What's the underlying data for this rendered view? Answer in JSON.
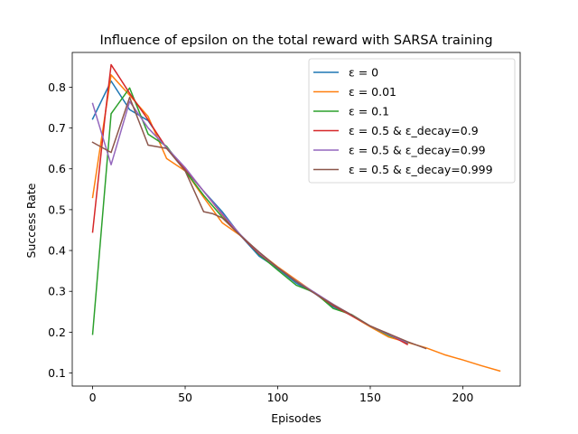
{
  "chart_data": {
    "type": "line",
    "title": "Influence of epsilon on the total reward with SARSA training",
    "xlabel": "Episodes",
    "ylabel": "Success Rate",
    "xlim": [
      -11,
      231
    ],
    "ylim": [
      0.068,
      0.885
    ],
    "xticks": [
      0,
      50,
      100,
      150,
      200
    ],
    "yticks": [
      0.1,
      0.2,
      0.3,
      0.4,
      0.5,
      0.6,
      0.7,
      0.8
    ],
    "xtick_labels": [
      "0",
      "50",
      "100",
      "150",
      "200"
    ],
    "ytick_labels": [
      "0.1",
      "0.2",
      "0.3",
      "0.4",
      "0.5",
      "0.6",
      "0.7",
      "0.8"
    ],
    "grid": false,
    "legend_position": "top-right",
    "series": [
      {
        "name": "ε = 0",
        "color": "#1f77b4",
        "x": [
          0,
          10,
          20,
          30,
          40,
          50,
          60,
          70,
          80,
          90,
          100,
          110,
          120,
          130,
          140,
          150,
          160,
          170
        ],
        "y": [
          0.722,
          0.815,
          0.745,
          0.718,
          0.65,
          0.598,
          0.545,
          0.495,
          0.436,
          0.386,
          0.356,
          0.32,
          0.295,
          0.262,
          0.241,
          0.214,
          0.196,
          0.172
        ]
      },
      {
        "name": "ε = 0.01",
        "color": "#ff7f0e",
        "x": [
          0,
          10,
          20,
          30,
          40,
          50,
          60,
          70,
          80,
          90,
          100,
          110,
          120,
          130,
          140,
          150,
          160,
          170,
          180,
          190,
          200,
          210,
          220
        ],
        "y": [
          0.53,
          0.83,
          0.78,
          0.728,
          0.625,
          0.595,
          0.53,
          0.468,
          0.436,
          0.395,
          0.36,
          0.328,
          0.296,
          0.268,
          0.24,
          0.213,
          0.188,
          0.175,
          0.162,
          0.145,
          0.132,
          0.118,
          0.105
        ]
      },
      {
        "name": "ε = 0.1",
        "color": "#2ca02c",
        "x": [
          0,
          10,
          20,
          30,
          40,
          50,
          60,
          70,
          80,
          90,
          100,
          110,
          120,
          130,
          140,
          150,
          160,
          170
        ],
        "y": [
          0.195,
          0.735,
          0.798,
          0.685,
          0.655,
          0.595,
          0.535,
          0.482,
          0.438,
          0.39,
          0.352,
          0.315,
          0.297,
          0.258,
          0.243,
          0.215,
          0.192,
          0.175
        ]
      },
      {
        "name": "ε = 0.5 & ε_decay=0.9",
        "color": "#d62728",
        "x": [
          0,
          7,
          10,
          20,
          30,
          40,
          50,
          60,
          70,
          80,
          90,
          100,
          110,
          120,
          130,
          140,
          150,
          160,
          170
        ],
        "y": [
          0.445,
          0.74,
          0.855,
          0.785,
          0.72,
          0.65,
          0.6,
          0.545,
          0.488,
          0.436,
          0.392,
          0.358,
          0.325,
          0.295,
          0.265,
          0.24,
          0.215,
          0.195,
          0.17
        ]
      },
      {
        "name": "ε = 0.5 & ε_decay=0.99",
        "color": "#9467bd",
        "x": [
          0,
          10,
          20,
          30,
          40,
          50,
          60,
          70,
          80,
          90,
          100,
          110,
          120,
          130,
          140,
          150,
          160,
          170
        ],
        "y": [
          0.76,
          0.61,
          0.765,
          0.7,
          0.652,
          0.603,
          0.545,
          0.49,
          0.438,
          0.394,
          0.358,
          0.325,
          0.297,
          0.268,
          0.242,
          0.215,
          0.194,
          0.175
        ]
      },
      {
        "name": "ε = 0.5 & ε_decay=0.999",
        "color": "#8c564b",
        "x": [
          0,
          10,
          20,
          30,
          40,
          50,
          60,
          65,
          70,
          80,
          90,
          100,
          110,
          120,
          130,
          140,
          150,
          160,
          170,
          180
        ],
        "y": [
          0.665,
          0.64,
          0.775,
          0.658,
          0.65,
          0.595,
          0.495,
          0.49,
          0.48,
          0.436,
          0.396,
          0.358,
          0.324,
          0.295,
          0.267,
          0.242,
          0.215,
          0.196,
          0.177,
          0.16
        ]
      }
    ]
  }
}
